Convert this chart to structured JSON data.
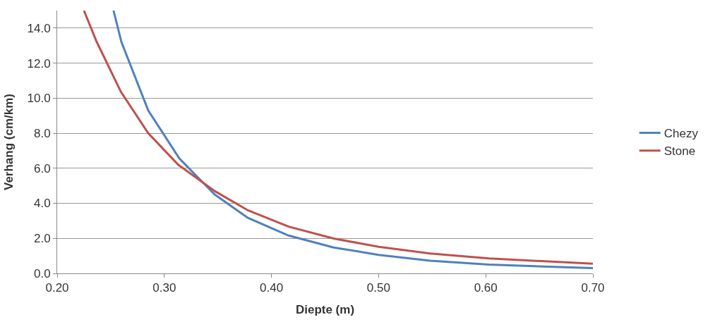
{
  "chart_data": {
    "type": "line",
    "xlabel": "Diepte (m)",
    "ylabel": "Verhang (cm/km)",
    "series": [
      {
        "name": "Chezy",
        "color": "#4f81bd",
        "x": [
          0.2526,
          0.26,
          0.285,
          0.314,
          0.347,
          0.378,
          0.416,
          0.458,
          0.5,
          0.548,
          0.603,
          0.7
        ],
        "values": [
          15.0,
          13.2,
          9.3,
          6.56,
          4.5,
          3.17,
          2.16,
          1.48,
          1.06,
          0.72,
          0.5,
          0.3
        ]
      },
      {
        "name": "Stone",
        "color": "#c0504d",
        "x": [
          0.225,
          0.2367,
          0.2595,
          0.285,
          0.313,
          0.347,
          0.378,
          0.416,
          0.458,
          0.5,
          0.548,
          0.603,
          0.7
        ],
        "values": [
          15.0,
          13.24,
          10.36,
          8.0,
          6.2,
          4.7,
          3.6,
          2.67,
          1.99,
          1.52,
          1.14,
          0.85,
          0.55
        ]
      }
    ],
    "xlim": [
      0.2,
      0.7
    ],
    "ylim": [
      0,
      15
    ],
    "xticks": [
      {
        "value": 0.2,
        "label": "0.20"
      },
      {
        "value": 0.3,
        "label": "0.30"
      },
      {
        "value": 0.4,
        "label": "0.40"
      },
      {
        "value": 0.5,
        "label": "0.50"
      },
      {
        "value": 0.6,
        "label": "0.60"
      },
      {
        "value": 0.7,
        "label": "0.70"
      }
    ],
    "yticks": [
      {
        "value": 0,
        "label": "0.0"
      },
      {
        "value": 2,
        "label": "2.0"
      },
      {
        "value": 4,
        "label": "4.0"
      },
      {
        "value": 6,
        "label": "6.0"
      },
      {
        "value": 8,
        "label": "8.0"
      },
      {
        "value": 10,
        "label": "10.0"
      },
      {
        "value": 12,
        "label": "12.0"
      },
      {
        "value": 14,
        "label": "14.0"
      }
    ],
    "grid": "y",
    "legend": "right",
    "marker": "none",
    "line_style": "solid"
  }
}
